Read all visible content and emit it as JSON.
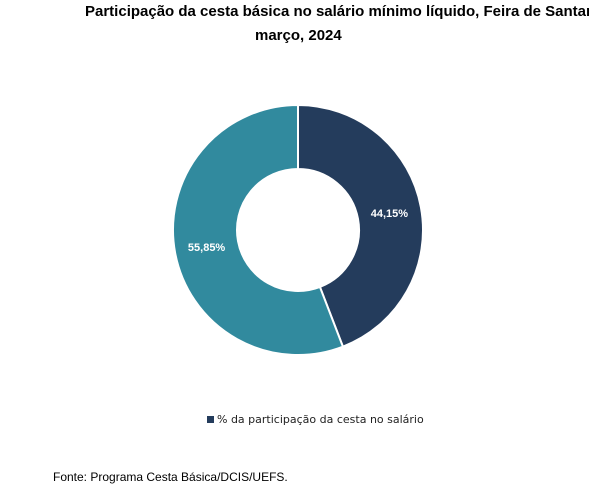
{
  "chart_data": {
    "type": "pie",
    "title_line1": "Participação da cesta básica no salário mínimo líquido, Feira de Santana,",
    "title_line2": "março, 2024",
    "slices": [
      {
        "label": "44,15%",
        "value": 44.15,
        "color": "#243c5c"
      },
      {
        "label": "55,85%",
        "value": 55.85,
        "color": "#318a9e"
      }
    ],
    "legend": {
      "entry": "% da participação da cesta no salário",
      "color": "#243c5c",
      "placement": "bottom"
    }
  },
  "source": "Fonte: Programa Cesta Básica/DCIS/UEFS."
}
